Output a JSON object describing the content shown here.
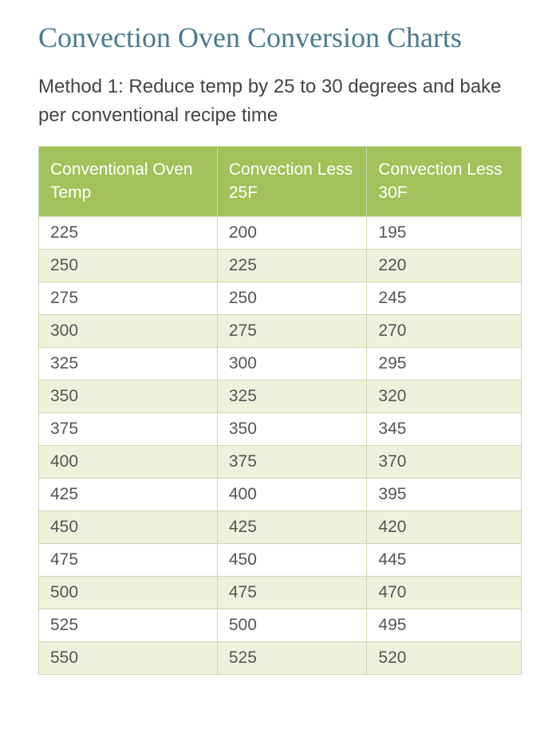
{
  "title": "Convection Oven Conversion Charts",
  "subtitle": "Method 1: Reduce temp by 25 to 30 degrees and bake per conventional recipe time",
  "table": {
    "columns": [
      "Conventional Oven Temp",
      "Convection Less 25F",
      "Convection Less 30F"
    ],
    "rows": [
      [
        "225",
        "200",
        "195"
      ],
      [
        "250",
        "225",
        "220"
      ],
      [
        "275",
        "250",
        "245"
      ],
      [
        "300",
        "275",
        "270"
      ],
      [
        "325",
        "300",
        "295"
      ],
      [
        "350",
        "325",
        "320"
      ],
      [
        "375",
        "350",
        "345"
      ],
      [
        "400",
        "375",
        "370"
      ],
      [
        "425",
        "400",
        "395"
      ],
      [
        "450",
        "425",
        "420"
      ],
      [
        "475",
        "450",
        "445"
      ],
      [
        "500",
        "475",
        "470"
      ],
      [
        "525",
        "500",
        "495"
      ],
      [
        "550",
        "525",
        "520"
      ]
    ],
    "header_bg_color": "#a3c15a",
    "header_text_color": "#ffffff",
    "row_odd_bg_color": "#ffffff",
    "row_even_bg_color": "#eef2dc",
    "border_color": "#cdd9b5",
    "cell_text_color": "#555555",
    "header_fontsize": 21,
    "cell_fontsize": 21,
    "column_widths_pct": [
      37,
      31,
      32
    ]
  },
  "title_color": "#4a7a8c",
  "title_fontsize": 36,
  "subtitle_color": "#444444",
  "subtitle_fontsize": 24,
  "background_color": "#ffffff"
}
